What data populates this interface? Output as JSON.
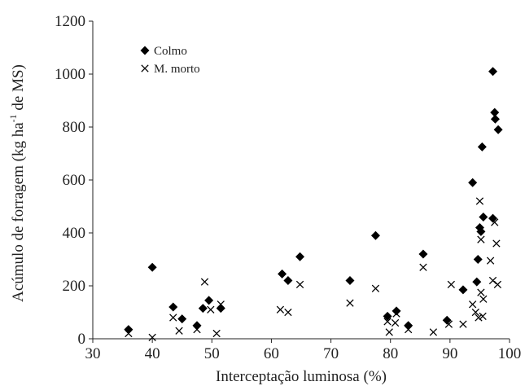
{
  "chart_data": {
    "type": "scatter",
    "xlabel": "Interceptação luminosa (%)",
    "ylabel": "Acúmulo de forragem (kg ha",
    "ylabel_sup": "-1",
    "ylabel_tail": " de MS)",
    "xlim": [
      30,
      100
    ],
    "ylim": [
      0,
      1200
    ],
    "xticks": [
      "30",
      "40",
      "50",
      "60",
      "70",
      "80",
      "90",
      "100"
    ],
    "yticks": [
      "0",
      "200",
      "400",
      "600",
      "800",
      "1000",
      "1200"
    ],
    "grid": false,
    "legend_position": "top-left",
    "series": [
      {
        "name": "Colmo",
        "marker": "diamond",
        "color": "#000000",
        "points": [
          [
            36,
            35
          ],
          [
            40,
            270
          ],
          [
            43.5,
            120
          ],
          [
            45,
            75
          ],
          [
            47.5,
            50
          ],
          [
            48.5,
            115
          ],
          [
            49.5,
            145
          ],
          [
            51.5,
            115
          ],
          [
            61.8,
            245
          ],
          [
            62.8,
            220
          ],
          [
            64.8,
            310
          ],
          [
            73.2,
            220
          ],
          [
            77.5,
            390
          ],
          [
            79.5,
            85
          ],
          [
            81,
            105
          ],
          [
            83,
            50
          ],
          [
            85.5,
            320
          ],
          [
            89.5,
            70
          ],
          [
            92.2,
            185
          ],
          [
            93.8,
            590
          ],
          [
            94.5,
            215
          ],
          [
            94.7,
            300
          ],
          [
            95,
            420
          ],
          [
            95.2,
            405
          ],
          [
            95.4,
            725
          ],
          [
            95.6,
            460
          ],
          [
            97.2,
            455
          ],
          [
            97.2,
            1010
          ],
          [
            97.5,
            855
          ],
          [
            97.6,
            830
          ],
          [
            98.1,
            790
          ]
        ]
      },
      {
        "name": "M. morto",
        "marker": "cross",
        "color": "#000000",
        "points": [
          [
            36,
            20
          ],
          [
            40,
            5
          ],
          [
            43.5,
            80
          ],
          [
            44.5,
            30
          ],
          [
            47.5,
            35
          ],
          [
            48.8,
            215
          ],
          [
            49.8,
            110
          ],
          [
            50.8,
            20
          ],
          [
            51.5,
            130
          ],
          [
            61.5,
            110
          ],
          [
            62.8,
            100
          ],
          [
            64.8,
            205
          ],
          [
            73.2,
            135
          ],
          [
            77.5,
            190
          ],
          [
            79.5,
            65
          ],
          [
            79.8,
            25
          ],
          [
            80.8,
            60
          ],
          [
            81,
            95
          ],
          [
            83,
            35
          ],
          [
            85.5,
            270
          ],
          [
            87.2,
            25
          ],
          [
            89.8,
            55
          ],
          [
            90.2,
            205
          ],
          [
            92.2,
            55
          ],
          [
            93.8,
            130
          ],
          [
            94.3,
            100
          ],
          [
            94.8,
            80
          ],
          [
            95,
            520
          ],
          [
            95.2,
            375
          ],
          [
            95.2,
            175
          ],
          [
            95.5,
            85
          ],
          [
            95.6,
            150
          ],
          [
            96.8,
            295
          ],
          [
            97.2,
            220
          ],
          [
            97.5,
            440
          ],
          [
            97.8,
            360
          ],
          [
            98,
            205
          ]
        ]
      }
    ]
  }
}
